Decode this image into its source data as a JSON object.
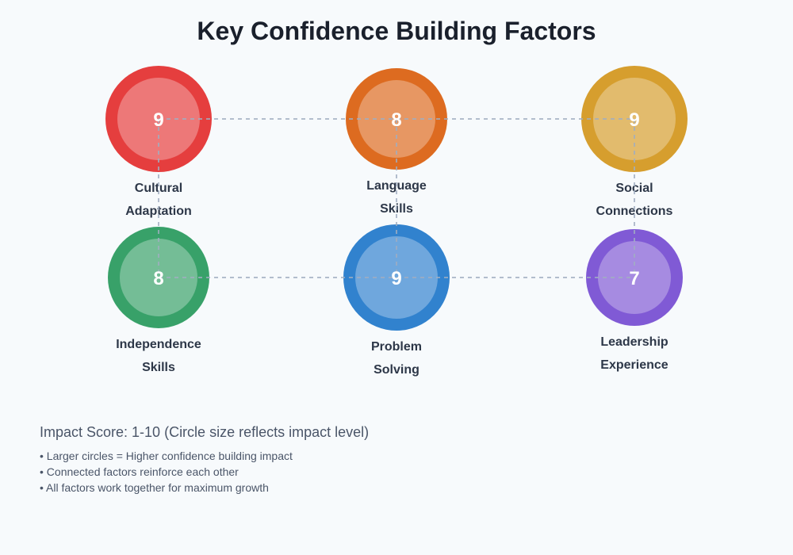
{
  "title": "Key Confidence Building Factors",
  "factors": [
    {
      "label_lines": [
        "Cultural",
        "Adaptation"
      ],
      "score": 9,
      "color": "#e53e3e",
      "row": 0,
      "col": 0
    },
    {
      "label_lines": [
        "Language",
        "Skills"
      ],
      "score": 8,
      "color": "#dd6b20",
      "row": 0,
      "col": 1
    },
    {
      "label_lines": [
        "Social",
        "Connections"
      ],
      "score": 9,
      "color": "#d69e2e",
      "row": 0,
      "col": 2
    },
    {
      "label_lines": [
        "Independence",
        "Skills"
      ],
      "score": 8,
      "color": "#38a169",
      "row": 1,
      "col": 0
    },
    {
      "label_lines": [
        "Problem",
        "Solving"
      ],
      "score": 9,
      "color": "#3182ce",
      "row": 1,
      "col": 1
    },
    {
      "label_lines": [
        "Leadership",
        "Experience"
      ],
      "score": 7,
      "color": "#805ad5",
      "row": 1,
      "col": 2
    }
  ],
  "legend": {
    "heading": "Impact Score: 1-10 (Circle size reflects impact level)",
    "bullets": [
      "• Larger circles = Higher confidence building impact",
      "• Connected factors reinforce each other",
      "• All factors work together for maximum growth"
    ]
  }
}
